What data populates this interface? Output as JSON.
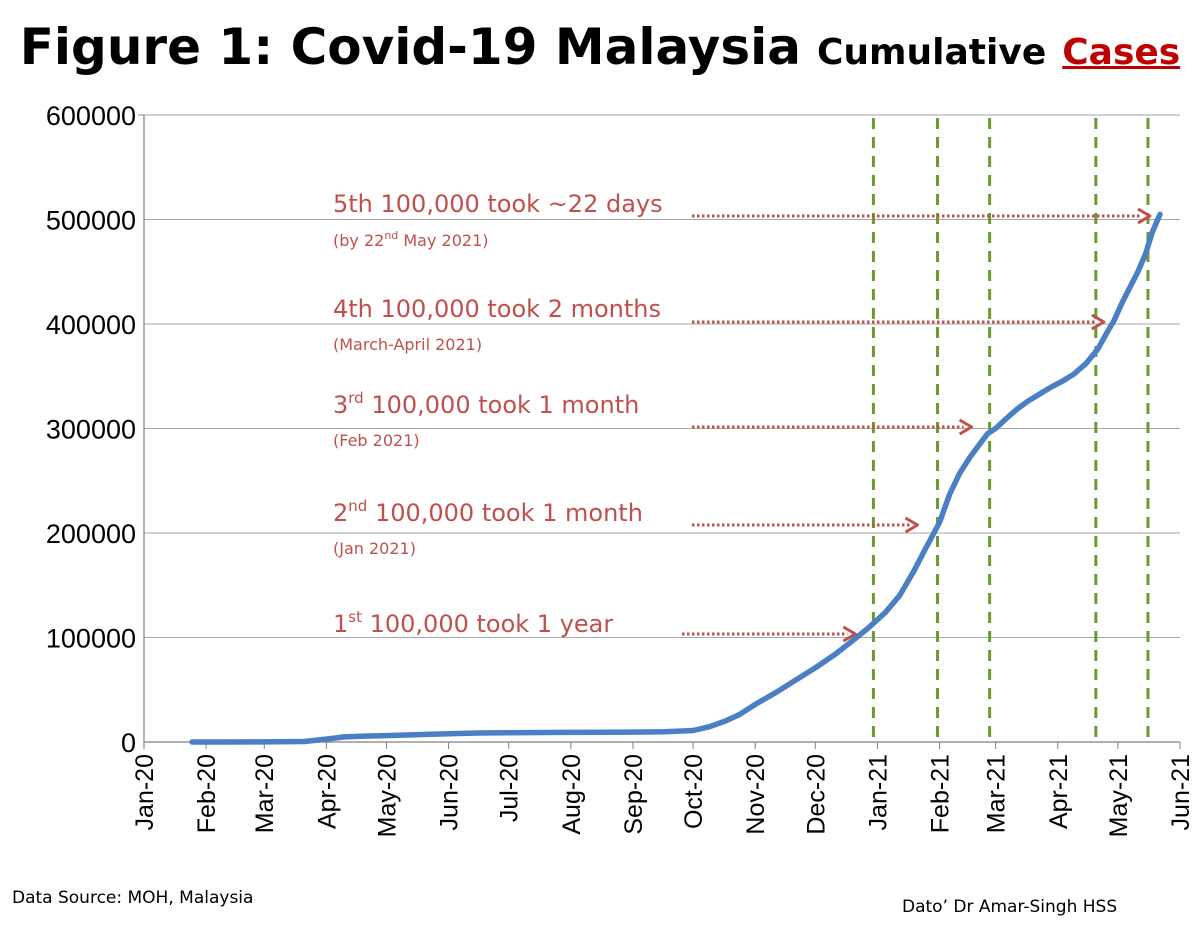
{
  "title": {
    "main": "Figure 1: Covid-19 Malaysia",
    "sub": "Cumulative",
    "highlight": "Cases"
  },
  "footer": {
    "source": "Data Source: MOH, Malaysia",
    "author": "Dato’ Dr Amar-Singh HSS"
  },
  "colors": {
    "line": "#4a7fc4",
    "annotation": "#c0504d",
    "vline": "#6b9a2e",
    "grid": "#a6a6a6",
    "title_highlight": "#c00000"
  },
  "chart_data": {
    "type": "line",
    "title": "Figure 1: Covid-19 Malaysia Cumulative Cases",
    "xlabel": "",
    "ylabel": "",
    "ylim": [
      0,
      600000
    ],
    "yticks": [
      0,
      100000,
      200000,
      300000,
      400000,
      500000,
      600000
    ],
    "yticklabels": [
      "0",
      "100000",
      "200000",
      "300000",
      "400000",
      "500000",
      "600000"
    ],
    "xlim": [
      0,
      507
    ],
    "xticks": [
      0,
      31,
      60,
      91,
      121,
      152,
      182,
      213,
      244,
      274,
      305,
      335,
      366,
      397,
      425,
      456,
      486,
      517
    ],
    "xticklabels": [
      "Jan-20",
      "Feb-20",
      "Mar-20",
      "Apr-20",
      "May-20",
      "Jun-20",
      "Jul-20",
      "Aug-20",
      "Sep-20",
      "Oct-20",
      "Nov-20",
      "Dec-20",
      "Jan-21",
      "Feb-21",
      "Mar-21",
      "Apr-21",
      "May-21",
      "Jun-21"
    ],
    "grid": true,
    "series": [
      {
        "name": "Cumulative cases",
        "x": [
          24,
          40,
          60,
          80,
          91,
          100,
          110,
          121,
          135,
          152,
          167,
          182,
          200,
          213,
          230,
          244,
          260,
          274,
          282,
          290,
          297,
          305,
          315,
          325,
          335,
          345,
          355,
          362,
          370,
          377,
          384,
          390,
          397,
          402,
          407,
          412,
          417,
          421,
          425,
          430,
          436,
          441,
          447,
          453,
          458,
          464,
          470,
          476,
          480,
          484,
          488,
          492,
          496,
          500,
          503,
          507
        ],
        "y": [
          0,
          20,
          50,
          500,
          2800,
          4900,
          5600,
          6100,
          7000,
          7900,
          8600,
          8900,
          9100,
          9200,
          9400,
          9500,
          9900,
          11000,
          14500,
          20000,
          26000,
          36000,
          47000,
          59000,
          71000,
          84000,
          99000,
          110000,
          124000,
          140000,
          163000,
          185000,
          210000,
          237000,
          257000,
          272000,
          285000,
          295000,
          300000,
          309000,
          319000,
          326000,
          333000,
          340000,
          345000,
          352000,
          362000,
          376000,
          390000,
          403000,
          420000,
          435000,
          450000,
          468000,
          487000,
          505000
        ]
      }
    ],
    "vertical_lines_x": [
      364,
      396,
      422,
      475,
      501
    ],
    "annotations": [
      {
        "main": "5th 100,000 took ~22 days",
        "sup": "",
        "main_rest": "",
        "note": "(by 22",
        "note_sup": "nd",
        "note_rest": " May 2021)",
        "arrow_to": [
          505,
          505000
        ]
      },
      {
        "main": "4th 100,000 took 2 months",
        "sup": "",
        "main_rest": "",
        "note": "(March-April 2021)",
        "note_sup": "",
        "note_rest": "",
        "arrow_to": [
          482,
          400000
        ]
      },
      {
        "main": "3",
        "sup": "rd",
        "main_rest": " 100,000 took 1 month",
        "note": "(Feb 2021)",
        "note_sup": "",
        "note_rest": "",
        "arrow_to": [
          416,
          300000
        ]
      },
      {
        "main": "2",
        "sup": "nd",
        "main_rest": " 100,000 took 1 month",
        "note": "(Jan 2021)",
        "note_sup": "",
        "note_rest": "",
        "arrow_to": [
          389,
          200000
        ]
      },
      {
        "main": "1",
        "sup": "st",
        "main_rest": " 100,000 took 1 year",
        "note": "",
        "note_sup": "",
        "note_rest": "",
        "arrow_to": [
          358,
          100000
        ]
      }
    ]
  }
}
